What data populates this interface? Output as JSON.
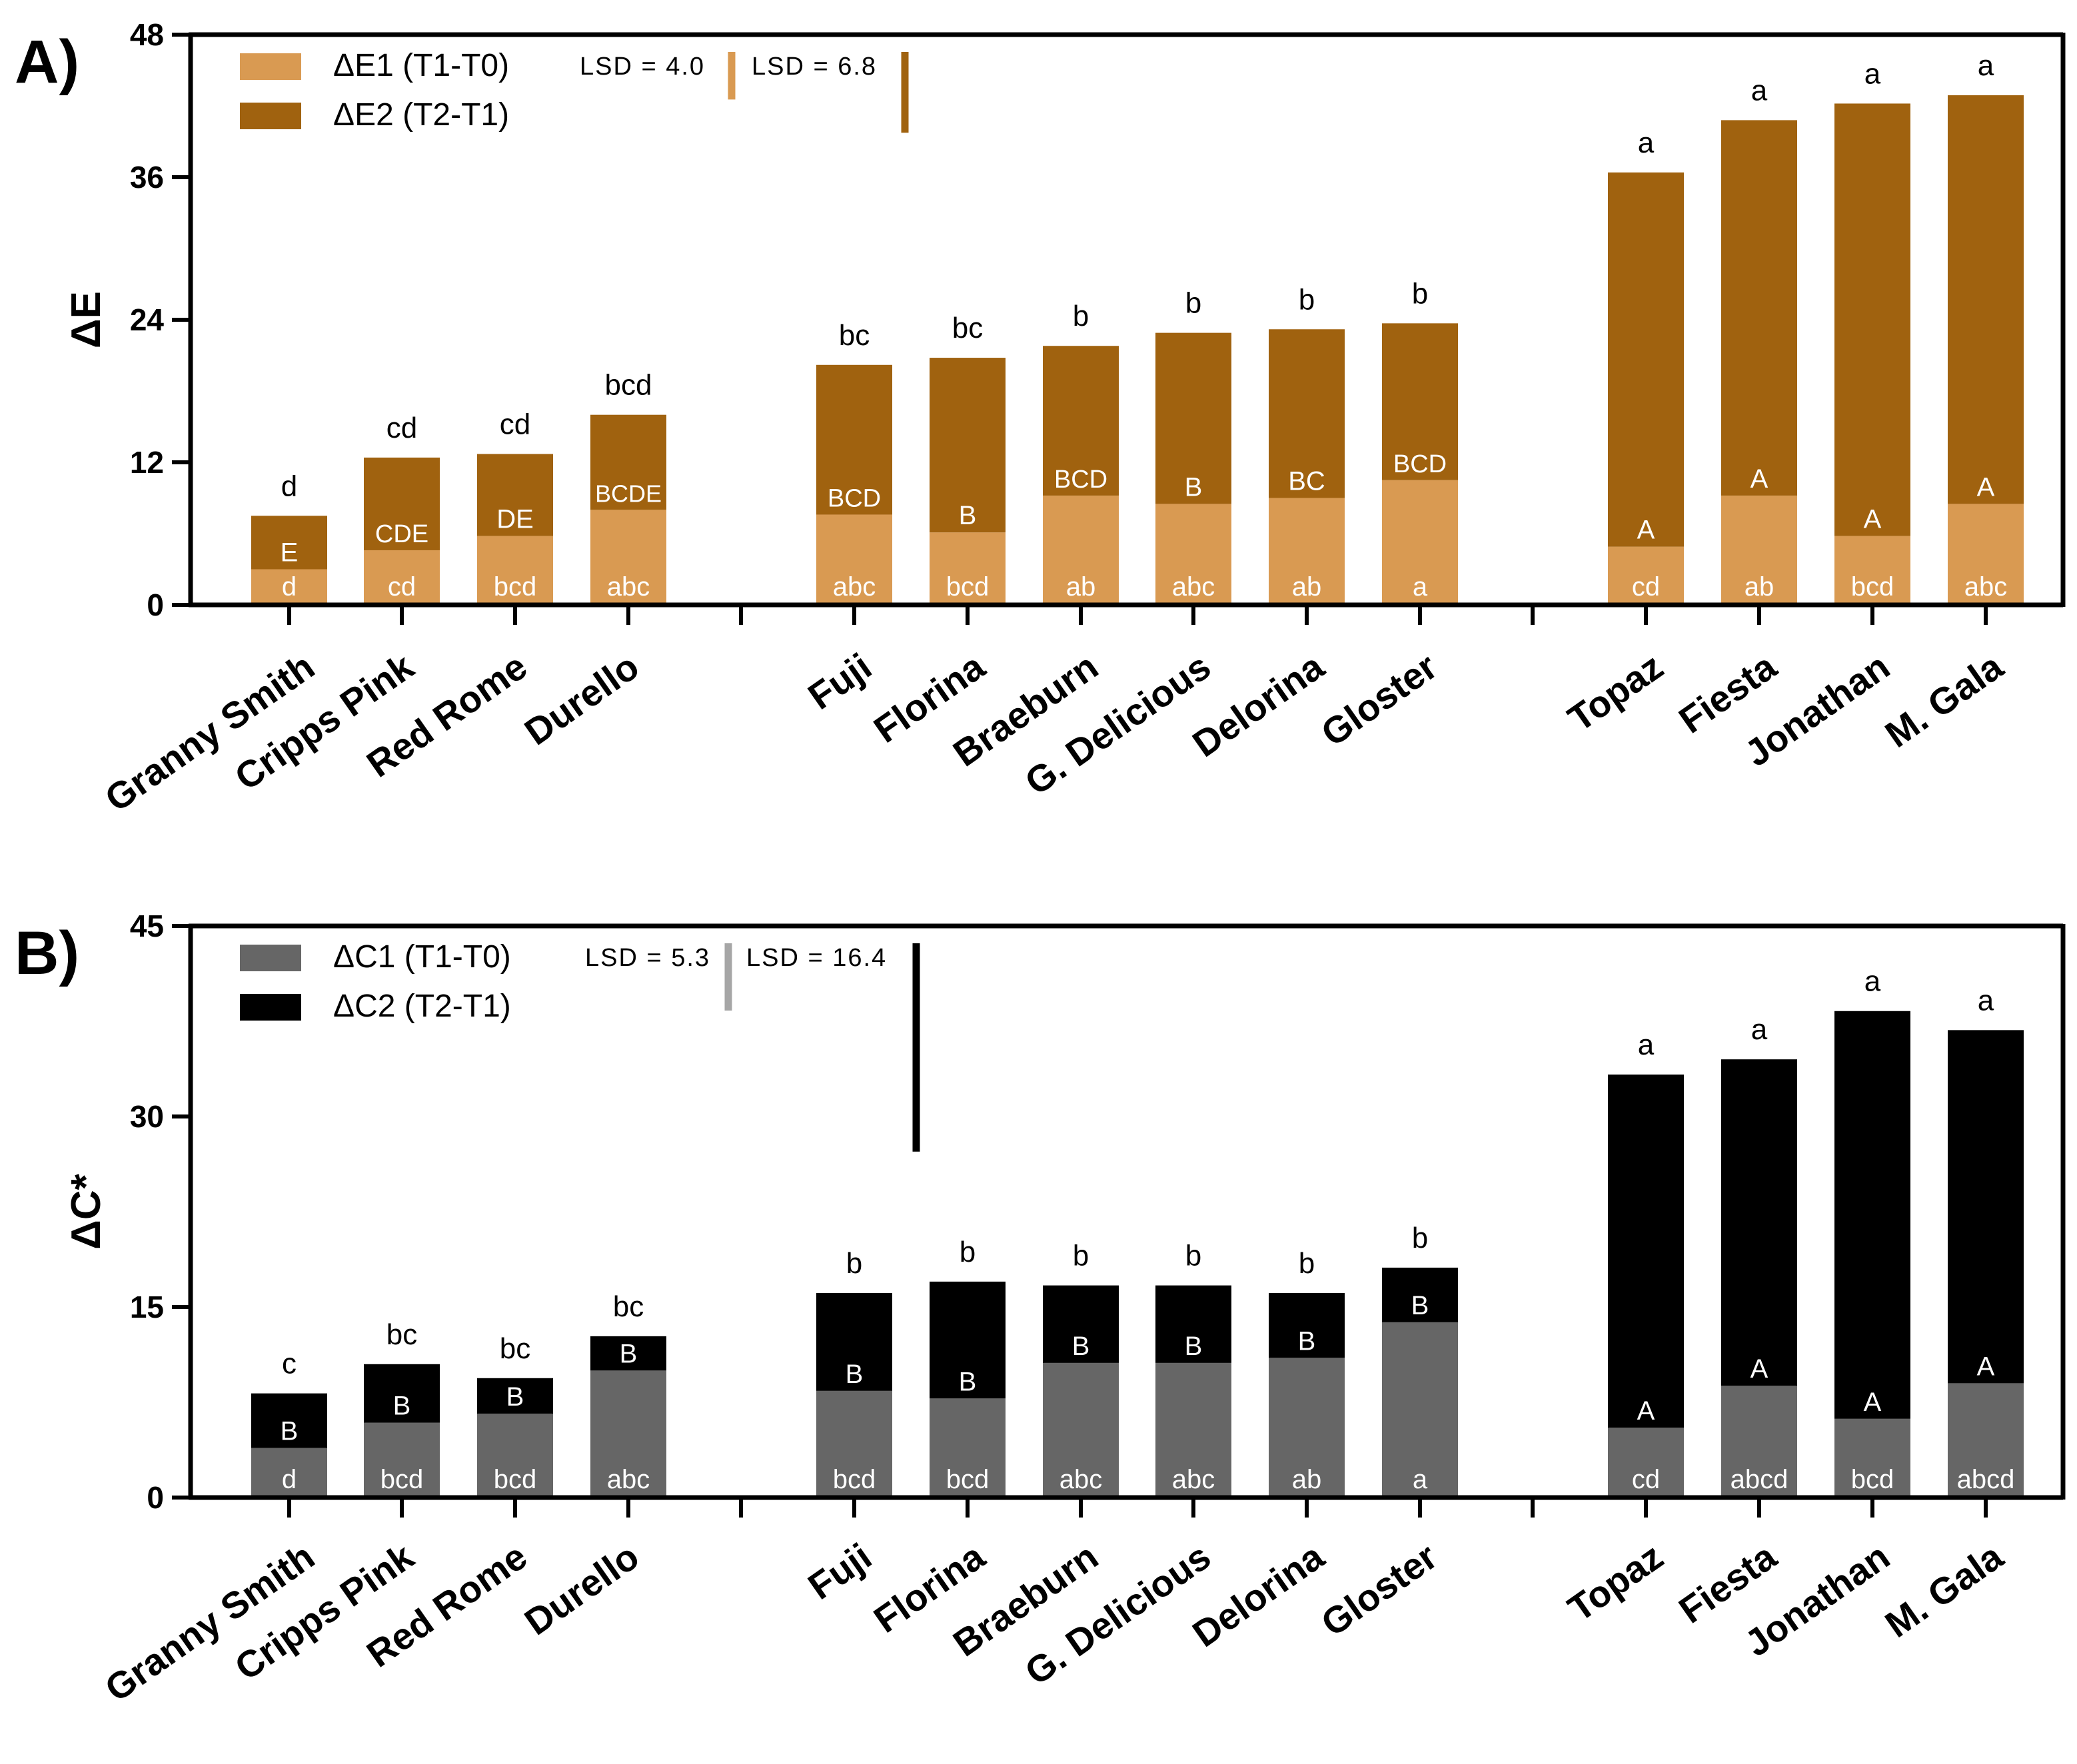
{
  "chart_data": [
    {
      "type": "bar",
      "stacked": true,
      "panel_label": "A)",
      "ylabel": "ΔE",
      "ylim": [
        0,
        48
      ],
      "yticks": [
        "0",
        "12",
        "24",
        "36",
        "48"
      ],
      "categories": [
        "Granny Smith",
        "Cripps Pink",
        "Red Rome",
        "Durello",
        "Fuji",
        "Florina",
        "Braeburn",
        "G. Delicious",
        "Delorina",
        "Gloster",
        "Topaz",
        "Fiesta",
        "Jonathan",
        "M. Gala"
      ],
      "groups": [
        [
          0,
          1,
          2,
          3
        ],
        [
          4,
          5,
          6,
          7,
          8,
          9
        ],
        [
          10,
          11,
          12,
          13
        ]
      ],
      "series": [
        {
          "name": "ΔE1 (T1-T0)",
          "color": "#D99A52",
          "values": [
            3.0,
            4.6,
            5.8,
            8.0,
            7.6,
            6.1,
            9.2,
            8.5,
            9.0,
            10.5,
            4.9,
            9.2,
            5.8,
            8.5
          ]
        },
        {
          "name": "ΔE2 (T2-T1)",
          "color": "#A0620F",
          "values": [
            4.5,
            7.8,
            6.9,
            8.0,
            12.6,
            14.7,
            12.6,
            14.4,
            14.2,
            13.2,
            31.5,
            31.6,
            36.4,
            34.4
          ]
        }
      ],
      "totals": [
        7.5,
        12.4,
        12.7,
        16.0,
        20.2,
        20.8,
        21.8,
        22.9,
        23.2,
        23.7,
        36.4,
        40.8,
        42.2,
        42.9
      ],
      "labels_lower": [
        "d",
        "cd",
        "bcd",
        "abc",
        "abc",
        "bcd",
        "ab",
        "abc",
        "ab",
        "a",
        "cd",
        "ab",
        "bcd",
        "abc"
      ],
      "labels_middle": [
        "E",
        "CDE",
        "DE",
        "BCDE",
        "BCD",
        "B",
        "BCD",
        "B",
        "BC",
        "BCD",
        "A",
        "A",
        "A",
        "A"
      ],
      "labels_top": [
        "d",
        "cd",
        "cd",
        "bcd",
        "bc",
        "bc",
        "b",
        "b",
        "b",
        "b",
        "a",
        "a",
        "a",
        "a"
      ],
      "lsd": [
        {
          "text": "LSD = 4.0",
          "value": 4.0,
          "color": "#D99A52"
        },
        {
          "text": "LSD = 6.8",
          "value": 6.8,
          "color": "#A0620F"
        }
      ]
    },
    {
      "type": "bar",
      "stacked": true,
      "panel_label": "B)",
      "ylabel": "ΔC*",
      "ylim": [
        0,
        45
      ],
      "yticks": [
        "0",
        "15",
        "30",
        "45"
      ],
      "categories": [
        "Granny Smith",
        "Cripps Pink",
        "Red Rome",
        "Durello",
        "Fuji",
        "Florina",
        "Braeburn",
        "G. Delicious",
        "Delorina",
        "Gloster",
        "Topaz",
        "Fiesta",
        "Jonathan",
        "M. Gala"
      ],
      "groups": [
        [
          0,
          1,
          2,
          3
        ],
        [
          4,
          5,
          6,
          7,
          8,
          9
        ],
        [
          10,
          11,
          12,
          13
        ]
      ],
      "series": [
        {
          "name": "ΔC1 (T1-T0)",
          "color": "#666666",
          "values": [
            3.9,
            5.9,
            6.6,
            10.0,
            8.4,
            7.8,
            10.6,
            10.6,
            11.0,
            13.8,
            5.5,
            8.8,
            6.2,
            9.0
          ]
        },
        {
          "name": "ΔC2 (T2-T1)",
          "color": "#000000",
          "values": [
            4.3,
            4.6,
            2.8,
            2.7,
            7.7,
            9.2,
            6.1,
            6.1,
            5.1,
            4.3,
            27.8,
            25.7,
            32.1,
            27.8
          ]
        }
      ],
      "totals": [
        8.2,
        10.5,
        9.4,
        12.7,
        16.1,
        17.0,
        16.7,
        16.7,
        16.1,
        18.1,
        33.3,
        34.5,
        38.3,
        36.8
      ],
      "labels_lower": [
        "d",
        "bcd",
        "bcd",
        "abc",
        "bcd",
        "bcd",
        "abc",
        "abc",
        "ab",
        "a",
        "cd",
        "abcd",
        "bcd",
        "abcd"
      ],
      "labels_middle": [
        "B",
        "B",
        "B",
        "B",
        "B",
        "B",
        "B",
        "B",
        "B",
        "B",
        "A",
        "A",
        "A",
        "A"
      ],
      "labels_top": [
        "c",
        "bc",
        "bc",
        "bc",
        "b",
        "b",
        "b",
        "b",
        "b",
        "b",
        "a",
        "a",
        "a",
        "a"
      ],
      "lsd": [
        {
          "text": "LSD = 5.3",
          "value": 5.3,
          "color": "#A6A6A6"
        },
        {
          "text": "LSD = 16.4",
          "value": 16.4,
          "color": "#000000"
        }
      ]
    }
  ]
}
